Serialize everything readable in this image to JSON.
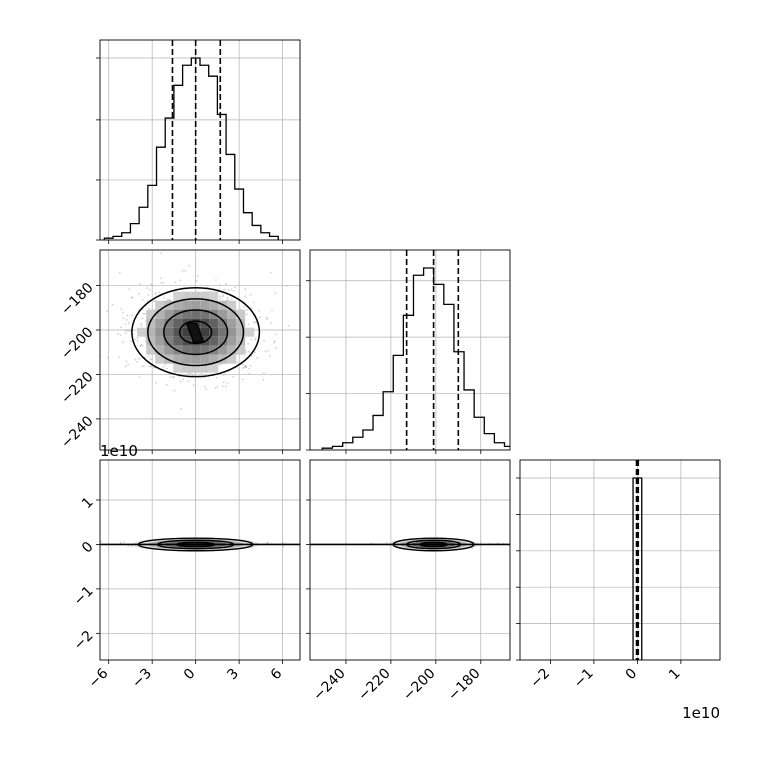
{
  "chart_data": [
    {
      "type": "histogram",
      "panel": "hist-param-1",
      "xlim": [
        -6.6,
        7.2
      ],
      "bins": [
        {
          "x": -6.0,
          "count": 0.01
        },
        {
          "x": -5.4,
          "count": 0.02
        },
        {
          "x": -4.8,
          "count": 0.04
        },
        {
          "x": -4.2,
          "count": 0.09
        },
        {
          "x": -3.6,
          "count": 0.18
        },
        {
          "x": -3.0,
          "count": 0.3
        },
        {
          "x": -2.4,
          "count": 0.51
        },
        {
          "x": -1.8,
          "count": 0.67
        },
        {
          "x": -1.2,
          "count": 0.85
        },
        {
          "x": -0.6,
          "count": 0.96
        },
        {
          "x": 0.0,
          "count": 1.0
        },
        {
          "x": 0.6,
          "count": 0.96
        },
        {
          "x": 1.2,
          "count": 0.9
        },
        {
          "x": 1.8,
          "count": 0.69
        },
        {
          "x": 2.4,
          "count": 0.47
        },
        {
          "x": 3.0,
          "count": 0.28
        },
        {
          "x": 3.6,
          "count": 0.15
        },
        {
          "x": 4.2,
          "count": 0.08
        },
        {
          "x": 4.8,
          "count": 0.04
        },
        {
          "x": 5.4,
          "count": 0.02
        }
      ],
      "bin_width": 0.6,
      "quantiles": [
        -1.6,
        0.0,
        1.7
      ],
      "yticks": [
        0.0,
        0.33,
        0.66,
        1.0
      ]
    },
    {
      "type": "histogram",
      "panel": "hist-param-2",
      "xlim": [
        -256,
        -167
      ],
      "bins": [
        {
          "x": -248.3,
          "count": 0.01
        },
        {
          "x": -243.7,
          "count": 0.02
        },
        {
          "x": -239.2,
          "count": 0.04
        },
        {
          "x": -234.7,
          "count": 0.07
        },
        {
          "x": -230.2,
          "count": 0.11
        },
        {
          "x": -225.7,
          "count": 0.19
        },
        {
          "x": -221.2,
          "count": 0.32
        },
        {
          "x": -216.7,
          "count": 0.52
        },
        {
          "x": -212.2,
          "count": 0.74
        },
        {
          "x": -207.7,
          "count": 0.96
        },
        {
          "x": -203.2,
          "count": 1.0
        },
        {
          "x": -198.7,
          "count": 0.91
        },
        {
          "x": -194.2,
          "count": 0.8
        },
        {
          "x": -189.7,
          "count": 0.54
        },
        {
          "x": -185.2,
          "count": 0.33
        },
        {
          "x": -180.7,
          "count": 0.18
        },
        {
          "x": -176.2,
          "count": 0.09
        },
        {
          "x": -171.7,
          "count": 0.04
        },
        {
          "x": -167.2,
          "count": 0.02
        }
      ],
      "bin_width": 4.5,
      "quantiles": [
        -213,
        -201,
        -190
      ],
      "yticks": [
        0.0,
        0.31,
        0.62,
        0.93
      ]
    },
    {
      "type": "histogram",
      "panel": "hist-param-3",
      "xlim": [
        -27000000000.0,
        19000000000.0
      ],
      "bins": [
        {
          "x": 0,
          "count": 1.0
        }
      ],
      "bin_width": 2000000000.0,
      "quantiles": [
        -200000000.0,
        0.0,
        200000000.0
      ],
      "yticks": [
        0.0,
        0.2,
        0.4,
        0.6,
        0.8,
        1.0
      ],
      "offset_label": "1e10"
    },
    {
      "type": "heatmap",
      "panel": "contour-param1-vs-param2",
      "xlim": [
        -6.6,
        7.2
      ],
      "ylim": [
        -254,
        -164
      ],
      "center": [
        0,
        -201
      ],
      "sigma": [
        2.2,
        10
      ],
      "contour_levels_sigma": [
        0.5,
        1.0,
        1.5,
        2.0
      ]
    },
    {
      "type": "heatmap",
      "panel": "contour-param1-vs-param3",
      "xlim": [
        -6.6,
        7.2
      ],
      "ylim": [
        -26000000000.0,
        19000000000.0
      ],
      "center": [
        0,
        0
      ],
      "sigma": [
        2.2,
        400000000.0
      ],
      "offset_label": "1e10"
    },
    {
      "type": "heatmap",
      "panel": "contour-param2-vs-param3",
      "xlim": [
        -256,
        -167
      ],
      "ylim": [
        -26000000000.0,
        19000000000.0
      ],
      "center": [
        -201,
        0
      ],
      "sigma": [
        10,
        400000000.0
      ]
    }
  ],
  "axes": {
    "param1_ticks": [
      "−6",
      "−3",
      "0",
      "3",
      "6"
    ],
    "param1_tick_values": [
      -6,
      -3,
      0,
      3,
      6
    ],
    "param2_ticks": [
      "−240",
      "−220",
      "−200",
      "−180"
    ],
    "param2_tick_values": [
      -240,
      -220,
      -200,
      -180
    ],
    "param2_ticks_y": [
      "−180",
      "−200",
      "−220",
      "−240"
    ],
    "param2_tick_values_y": [
      -180,
      -200,
      -220,
      -240
    ],
    "param3_ticks_y": [
      "1",
      "0",
      "−1",
      "−2"
    ],
    "param3_tick_values_y": [
      1,
      0,
      -1,
      -2
    ],
    "param3_ticks_x": [
      "−2",
      "−1",
      "0",
      "1"
    ],
    "param3_tick_values_x": [
      -2,
      -1,
      0,
      1
    ],
    "offset_label": "1e10",
    "offset_label_bottom": "1e10"
  },
  "colors": {
    "line": "#000000",
    "grid": "#b0b0b0",
    "scatter": "#9a9a9a"
  }
}
